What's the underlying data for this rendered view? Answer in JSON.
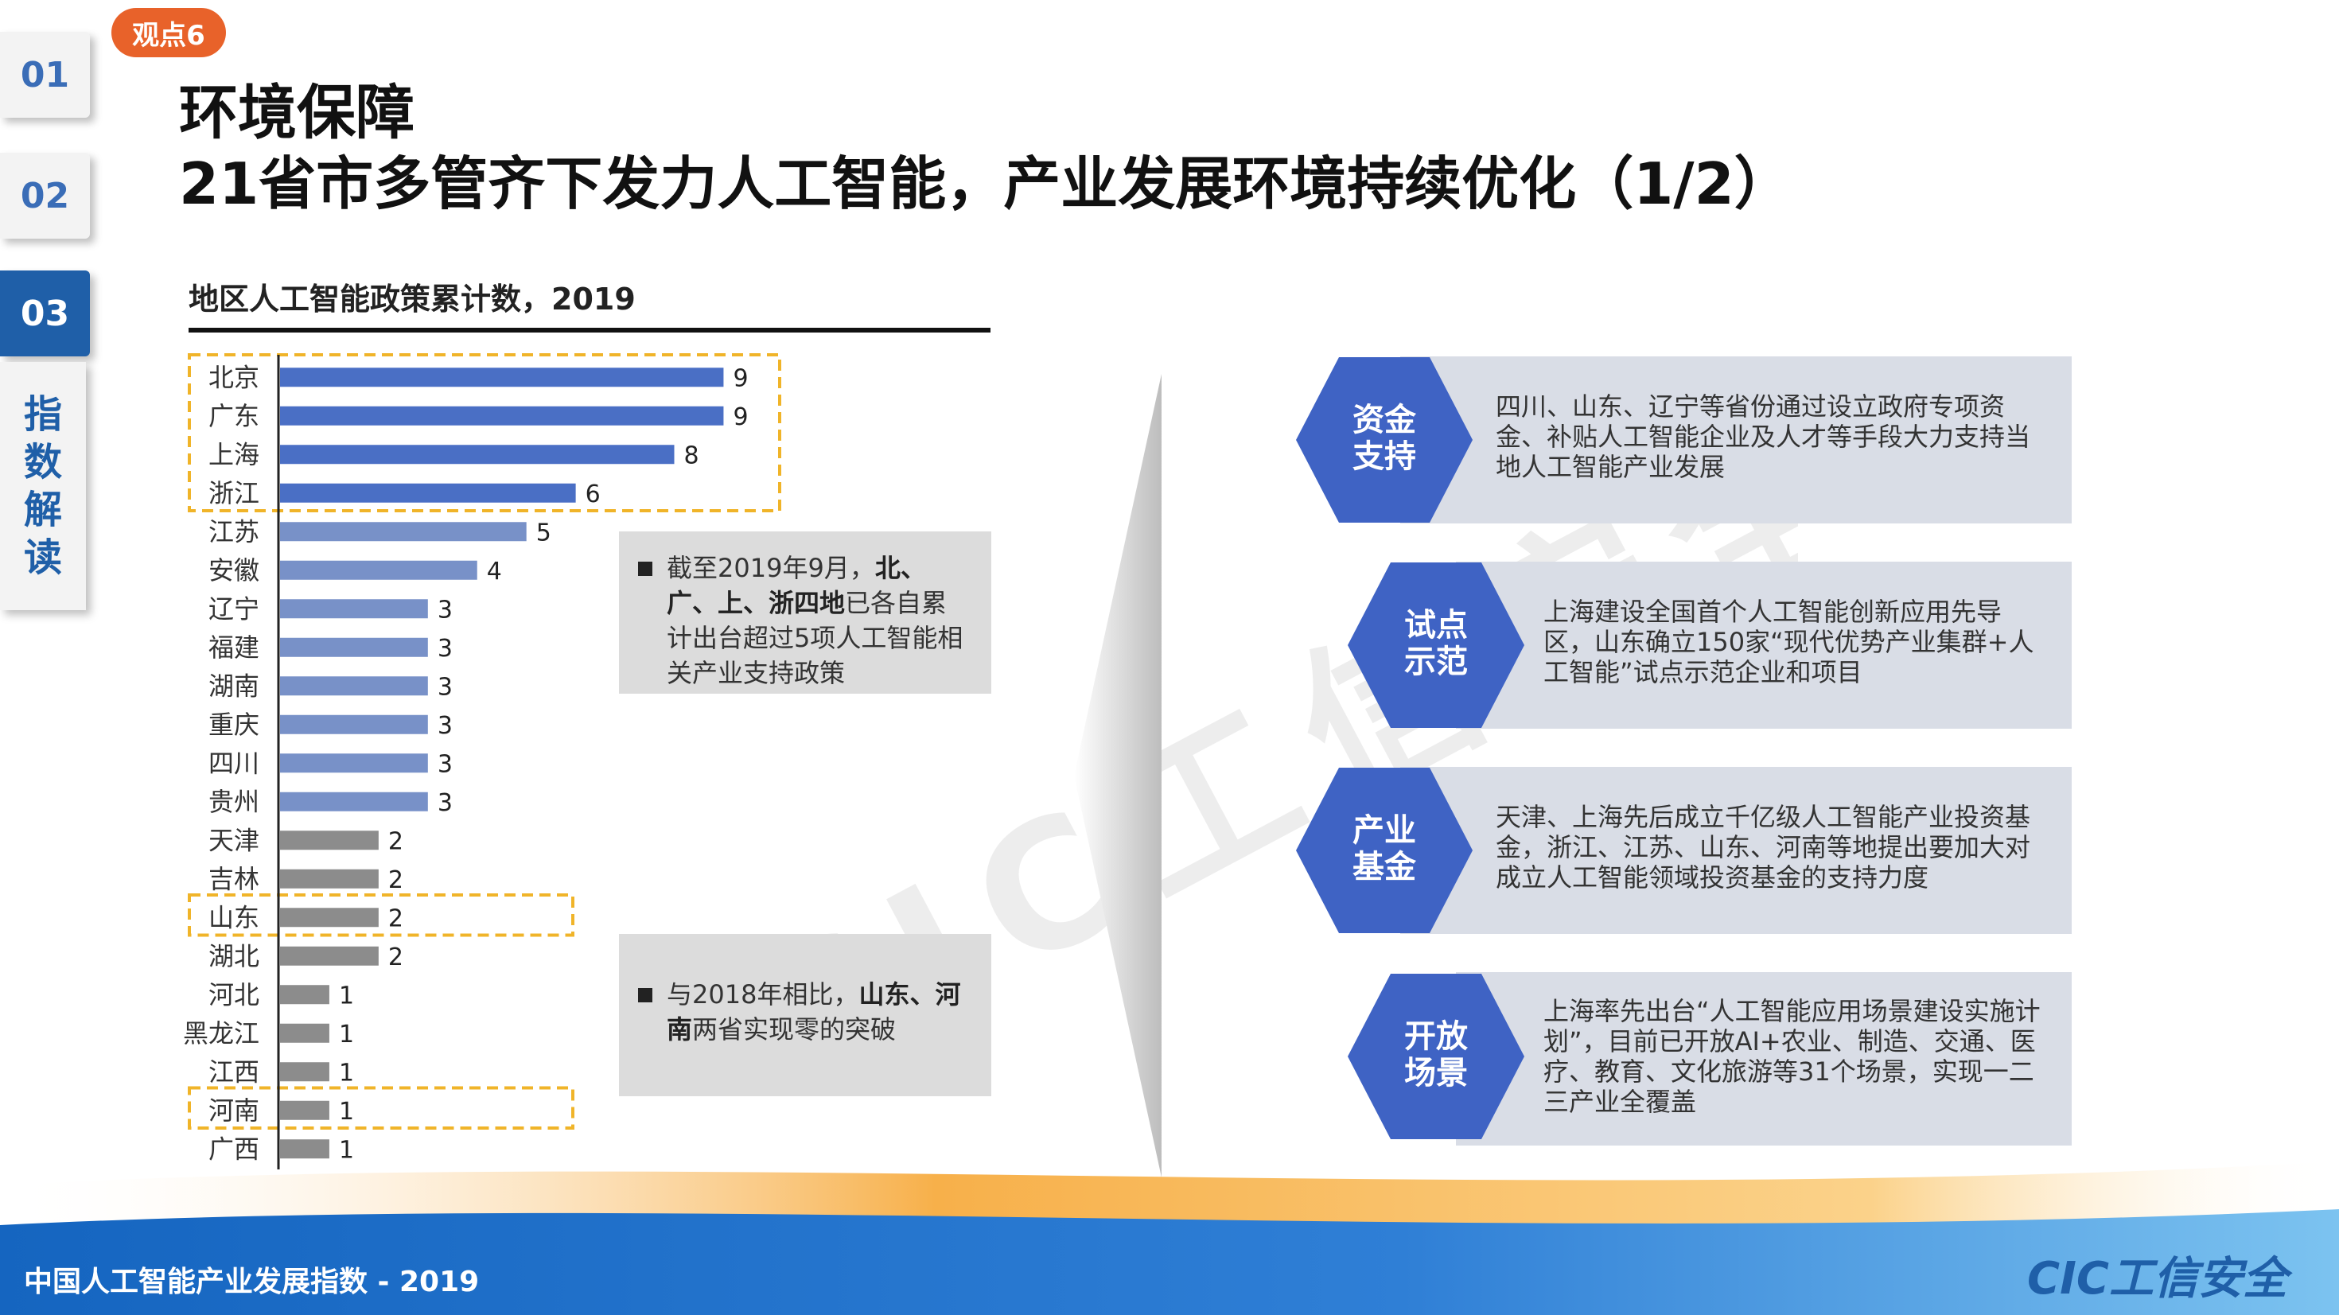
{
  "badge": "观点6",
  "nav": {
    "tabs": [
      "01",
      "02",
      "03"
    ],
    "active_tab": "03",
    "section_label": [
      "指",
      "数",
      "解",
      "读"
    ]
  },
  "title": {
    "line1": "环境保障",
    "line2": "21省市多管齐下发力人工智能，产业发展环境持续优化（1/2）"
  },
  "chart_data": {
    "type": "bar",
    "orientation": "horizontal",
    "title": "地区人工智能政策累计数，2019",
    "categories": [
      "北京",
      "广东",
      "上海",
      "浙江",
      "江苏",
      "安徽",
      "辽宁",
      "福建",
      "湖南",
      "重庆",
      "四川",
      "贵州",
      "天津",
      "吉林",
      "山东",
      "湖北",
      "河北",
      "黑龙江",
      "江西",
      "河南",
      "广西"
    ],
    "values": [
      9,
      9,
      8,
      6,
      5,
      4,
      3,
      3,
      3,
      3,
      3,
      3,
      2,
      2,
      2,
      2,
      1,
      1,
      1,
      1,
      1
    ],
    "bar_colors": {
      "dark_blue": "#4a6fc5",
      "light_blue": "#7891c8",
      "gray": "#8c8c8c"
    },
    "highlight_color": "#f0b429"
  },
  "notes": {
    "note1": {
      "prefix": "截至2019年9月，",
      "bold": "北、广、上、浙四地",
      "suffix": "已各自累计出台超过5项人工智能相关产业支持政策"
    },
    "note2": {
      "prefix": "与2018年相比，",
      "bold": "山东、河南",
      "suffix": "两省实现零的突破"
    }
  },
  "cards": [
    {
      "label": [
        "资金",
        "支持"
      ],
      "text": "四川、山东、辽宁等省份通过设立政府专项资金、补贴人工智能企业及人才等手段大力支持当地人工智能产业发展"
    },
    {
      "label": [
        "试点",
        "示范"
      ],
      "text": "上海建设全国首个人工智能创新应用先导区，山东确立150家“现代优势产业集群+人工智能”试点示范企业和项目"
    },
    {
      "label": [
        "产业",
        "基金"
      ],
      "text": "天津、上海先后成立千亿级人工智能产业投资基金，浙江、江苏、山东、河南等地提出要加大对成立人工智能领域投资基金的支持力度"
    },
    {
      "label": [
        "开放",
        "场景"
      ],
      "text": "上海率先出台“人工智能应用场景建设实施计划”，目前已开放AI+农业、制造、交通、医疗、教育、文化旅游等31个场景，实现一二三产业全覆盖"
    }
  ],
  "footer": {
    "text": "中国人工智能产业发展指数 - 2019",
    "logo": "CIC工信安全"
  },
  "colors": {
    "accent_blue": "#1f5fa8",
    "hex_blue": "#3f63c4",
    "badge_orange": "#e8622a"
  }
}
